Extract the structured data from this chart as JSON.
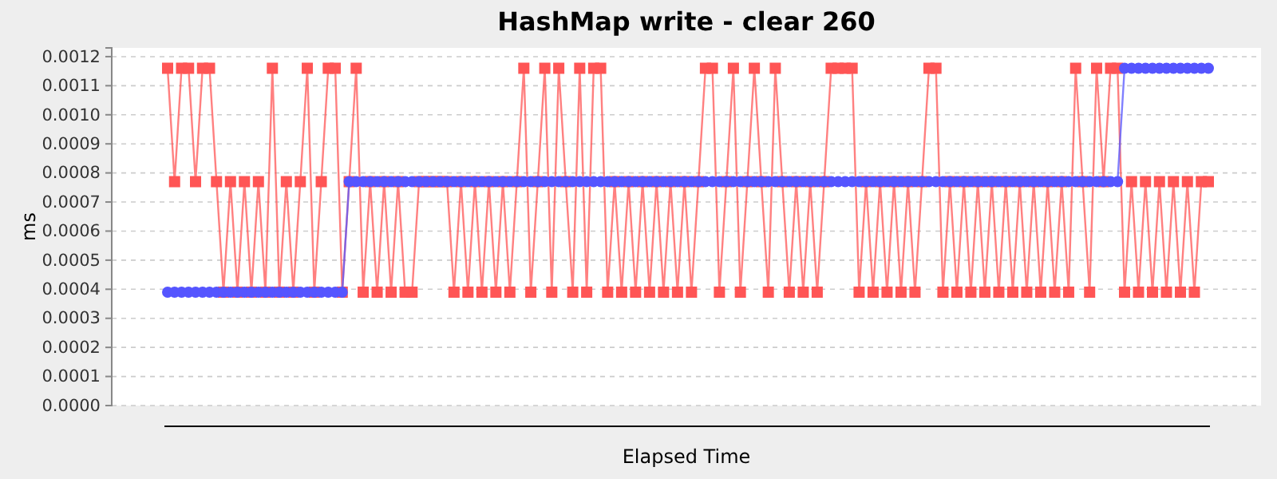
{
  "chart_data": {
    "type": "line",
    "title": "HashMap write - clear 260",
    "xlabel": "Elapsed Time",
    "ylabel": "ms",
    "categories": [
      null,
      null,
      null,
      null,
      null,
      null,
      null,
      null,
      null,
      null,
      null,
      null,
      null,
      null,
      null,
      null,
      null,
      null,
      null,
      null,
      null,
      null,
      null,
      null,
      null,
      null,
      null,
      null,
      null,
      null,
      null,
      null,
      null,
      null,
      null,
      null,
      null,
      null,
      null,
      null,
      null,
      null,
      null,
      null,
      null,
      null,
      null,
      null,
      null,
      null,
      null,
      null,
      null,
      null,
      null,
      null,
      null,
      null,
      null,
      null,
      null,
      null,
      null,
      null,
      null,
      null,
      null,
      null,
      null,
      null,
      null,
      null,
      null,
      null,
      null,
      null,
      null,
      null,
      null,
      null,
      null,
      null,
      null,
      null,
      null,
      null,
      null,
      null,
      null,
      null,
      null,
      null,
      null,
      null,
      null,
      null,
      null,
      null,
      null,
      null,
      null,
      null,
      null,
      null,
      null,
      null,
      null,
      null,
      null,
      null,
      null,
      null,
      null,
      null,
      null,
      null,
      null,
      null,
      null,
      null,
      null,
      null,
      null,
      null,
      null,
      null,
      null,
      null,
      null,
      null,
      null,
      null,
      null,
      null,
      null,
      null,
      null,
      null,
      null,
      null,
      null,
      null,
      null,
      null,
      null,
      null,
      null,
      null,
      null,
      null
    ],
    "series": [
      {
        "color": "#ff5555",
        "marker": "square",
        "values": [
          0.00116,
          0.00077,
          0.00116,
          0.00116,
          0.00077,
          0.00116,
          0.00116,
          0.00077,
          0.00039,
          0.00077,
          0.00039,
          0.00077,
          0.00039,
          0.00077,
          0.00039,
          0.00116,
          0.00039,
          0.00077,
          0.00039,
          0.00077,
          0.00116,
          0.00039,
          0.00077,
          0.00116,
          0.00116,
          0.00039,
          0.00077,
          0.00116,
          0.00039,
          0.00077,
          0.00039,
          0.00077,
          0.00039,
          0.00077,
          0.00039,
          0.00039,
          0.00077,
          0.00077,
          0.00077,
          0.00077,
          0.00077,
          0.00039,
          0.00077,
          0.00039,
          0.00077,
          0.00039,
          0.00077,
          0.00039,
          0.00077,
          0.00039,
          0.00077,
          0.00116,
          0.00039,
          0.00077,
          0.00116,
          0.00039,
          0.00116,
          0.00077,
          0.00039,
          0.00116,
          0.00039,
          0.00116,
          0.00116,
          0.00039,
          0.00077,
          0.00039,
          0.00077,
          0.00039,
          0.00077,
          0.00039,
          0.00077,
          0.00039,
          0.00077,
          0.00039,
          0.00077,
          0.00039,
          0.00077,
          0.00116,
          0.00116,
          0.00039,
          0.00077,
          0.00116,
          0.00039,
          0.00077,
          0.00116,
          0.00077,
          0.00039,
          0.00116,
          0.00077,
          0.00039,
          0.00077,
          0.00039,
          0.00077,
          0.00039,
          0.00077,
          0.00116,
          0.00116,
          0.00116,
          0.00116,
          0.00039,
          0.00077,
          0.00039,
          0.00077,
          0.00039,
          0.00077,
          0.00039,
          0.00077,
          0.00039,
          0.00077,
          0.00116,
          0.00116,
          0.00039,
          0.00077,
          0.00039,
          0.00077,
          0.00039,
          0.00077,
          0.00039,
          0.00077,
          0.00039,
          0.00077,
          0.00039,
          0.00077,
          0.00039,
          0.00077,
          0.00039,
          0.00077,
          0.00039,
          0.00077,
          0.00039,
          0.00116,
          0.00077,
          0.00039,
          0.00116,
          0.00077,
          0.00116,
          0.00116,
          0.00039,
          0.00077,
          0.00039,
          0.00077,
          0.00039,
          0.00077,
          0.00039,
          0.00077,
          0.00039,
          0.00077,
          0.00039,
          0.00077,
          0.00077
        ]
      },
      {
        "color": "#5555ff",
        "marker": "circle",
        "values": [
          0.00039,
          0.00039,
          0.00039,
          0.00039,
          0.00039,
          0.00039,
          0.00039,
          0.00039,
          0.00039,
          0.00039,
          0.00039,
          0.00039,
          0.00039,
          0.00039,
          0.00039,
          0.00039,
          0.00039,
          0.00039,
          0.00039,
          0.00039,
          0.00039,
          0.00039,
          0.00039,
          0.00039,
          0.00039,
          0.00039,
          0.00077,
          0.00077,
          0.00077,
          0.00077,
          0.00077,
          0.00077,
          0.00077,
          0.00077,
          0.00077,
          0.00077,
          0.00077,
          0.00077,
          0.00077,
          0.00077,
          0.00077,
          0.00077,
          0.00077,
          0.00077,
          0.00077,
          0.00077,
          0.00077,
          0.00077,
          0.00077,
          0.00077,
          0.00077,
          0.00077,
          0.00077,
          0.00077,
          0.00077,
          0.00077,
          0.00077,
          0.00077,
          0.00077,
          0.00077,
          0.00077,
          0.00077,
          0.00077,
          0.00077,
          0.00077,
          0.00077,
          0.00077,
          0.00077,
          0.00077,
          0.00077,
          0.00077,
          0.00077,
          0.00077,
          0.00077,
          0.00077,
          0.00077,
          0.00077,
          0.00077,
          0.00077,
          0.00077,
          0.00077,
          0.00077,
          0.00077,
          0.00077,
          0.00077,
          0.00077,
          0.00077,
          0.00077,
          0.00077,
          0.00077,
          0.00077,
          0.00077,
          0.00077,
          0.00077,
          0.00077,
          0.00077,
          0.00077,
          0.00077,
          0.00077,
          0.00077,
          0.00077,
          0.00077,
          0.00077,
          0.00077,
          0.00077,
          0.00077,
          0.00077,
          0.00077,
          0.00077,
          0.00077,
          0.00077,
          0.00077,
          0.00077,
          0.00077,
          0.00077,
          0.00077,
          0.00077,
          0.00077,
          0.00077,
          0.00077,
          0.00077,
          0.00077,
          0.00077,
          0.00077,
          0.00077,
          0.00077,
          0.00077,
          0.00077,
          0.00077,
          0.00077,
          0.00077,
          0.00077,
          0.00077,
          0.00077,
          0.00077,
          0.00077,
          0.00077,
          0.00116,
          0.00116,
          0.00116,
          0.00116,
          0.00116,
          0.00116,
          0.00116,
          0.00116,
          0.00116,
          0.00116,
          0.00116,
          0.00116,
          0.00116
        ]
      }
    ],
    "ylim": [
      0,
      0.00123
    ],
    "yticks": [
      {
        "value": 0,
        "label": "0.0000"
      },
      {
        "value": 0.0001,
        "label": "0.0001"
      },
      {
        "value": 0.0002,
        "label": "0.0002"
      },
      {
        "value": 0.0003,
        "label": "0.0003"
      },
      {
        "value": 0.0004,
        "label": "0.0004"
      },
      {
        "value": 0.0005,
        "label": "0.0005"
      },
      {
        "value": 0.0006,
        "label": "0.0006"
      },
      {
        "value": 0.0007,
        "label": "0.0007"
      },
      {
        "value": 0.0008,
        "label": "0.0008"
      },
      {
        "value": 0.0009,
        "label": "0.0009"
      },
      {
        "value": 0.001,
        "label": "0.0010"
      },
      {
        "value": 0.0011,
        "label": "0.0011"
      },
      {
        "value": 0.0012,
        "label": "0.0012"
      }
    ],
    "grid": "y",
    "tick_labels": "y"
  }
}
